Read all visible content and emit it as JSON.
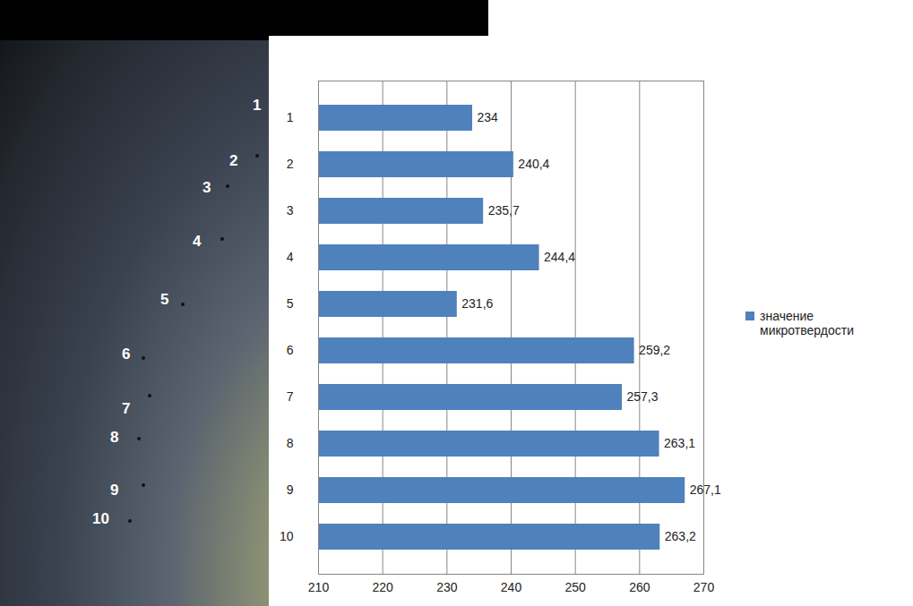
{
  "chart_data": {
    "type": "bar",
    "orientation": "horizontal",
    "categories": [
      "1",
      "2",
      "3",
      "4",
      "5",
      "6",
      "7",
      "8",
      "9",
      "10"
    ],
    "series": [
      {
        "name": "значение микротвердости",
        "color": "#4f81bd",
        "values": [
          234,
          240.4,
          235.7,
          244.4,
          231.6,
          259.2,
          257.3,
          263.1,
          267.1,
          263.2
        ],
        "value_labels": [
          "234",
          "240,4",
          "235,7",
          "244,4",
          "231,6",
          "259,2",
          "257,3",
          "263,1",
          "267,1",
          "263,2"
        ]
      }
    ],
    "xlim": [
      210,
      270
    ],
    "xticks": [
      210,
      220,
      230,
      240,
      250,
      260,
      270
    ],
    "grid": true,
    "data_labels": true,
    "legend": "right"
  }
}
